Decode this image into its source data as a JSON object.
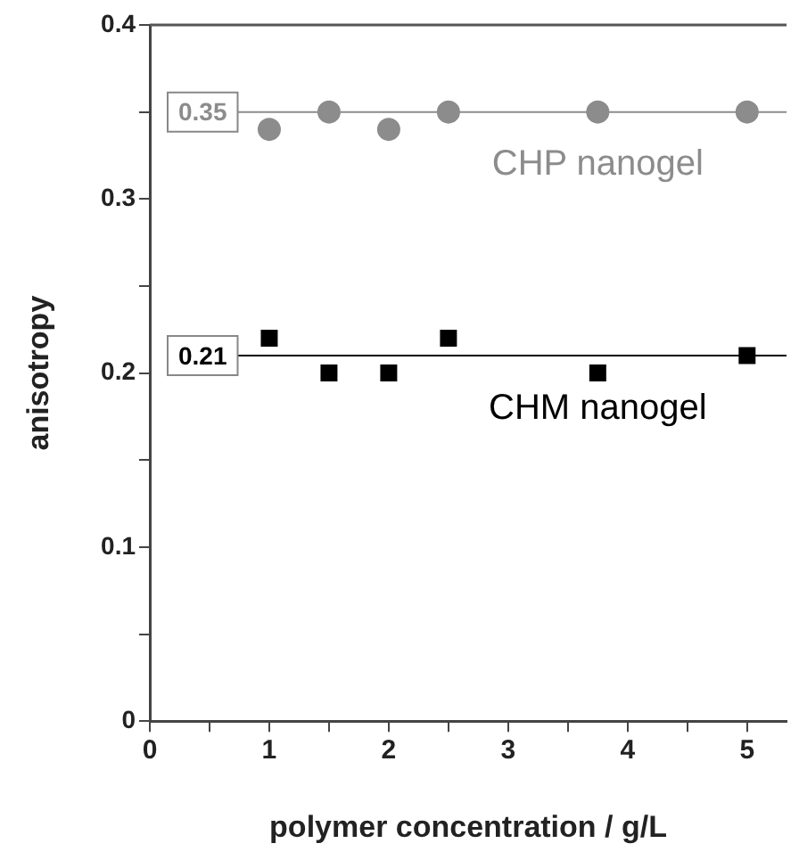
{
  "chart_data": {
    "type": "scatter",
    "xlabel": "polymer concentration / g/L",
    "ylabel": "anisotropy",
    "xlim": [
      0,
      5.33
    ],
    "xticks": [
      0,
      {
        "value": 0.5,
        "label": null
      },
      1,
      {
        "value": 1.5,
        "label": null
      },
      2,
      {
        "value": 2.5,
        "label": null
      },
      3,
      {
        "value": 3.5,
        "label": null
      },
      4,
      {
        "value": 4.5,
        "label": null
      },
      5
    ],
    "ylim": [
      0,
      0.4
    ],
    "yticks": [
      0,
      {
        "value": 0.05,
        "label": null
      },
      0.1,
      {
        "value": 0.15,
        "label": null
      },
      0.2,
      {
        "value": 0.25,
        "label": null
      },
      0.3,
      {
        "value": 0.35,
        "label": null
      },
      0.4
    ],
    "series": [
      {
        "name": "CHP nanogel",
        "color": "#8c8c8c",
        "marker": "circle",
        "x": [
          1,
          1.5,
          2,
          2.5,
          3.75,
          5
        ],
        "values": [
          0.34,
          0.35,
          0.34,
          0.35,
          0.35,
          0.35
        ]
      },
      {
        "name": "CHM nanogel",
        "color": "#000000",
        "marker": "square",
        "x": [
          1,
          1.5,
          2,
          2.5,
          3.75,
          5
        ],
        "values": [
          0.22,
          0.2,
          0.2,
          0.22,
          0.2,
          0.21
        ]
      }
    ],
    "ref_lines": [
      {
        "axis": "y",
        "value": 0.35,
        "label": "0.35",
        "color": "#8c8c8c"
      },
      {
        "axis": "y",
        "value": 0.21,
        "label": "0.21",
        "color": "#000000"
      }
    ],
    "grid": false,
    "legend": false
  }
}
